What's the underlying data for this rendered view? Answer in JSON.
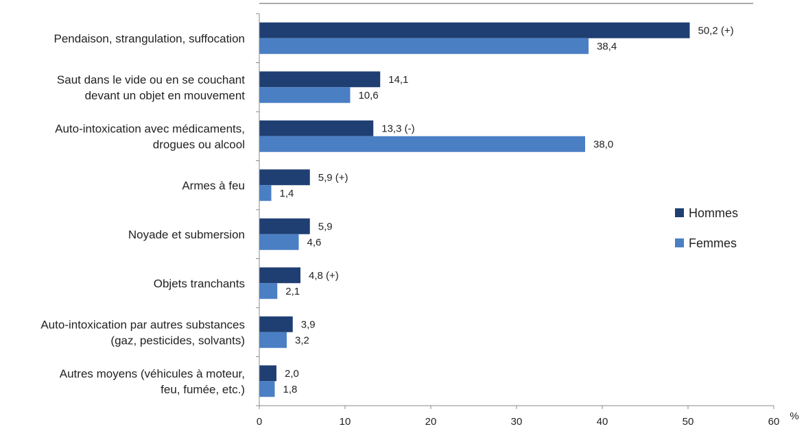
{
  "chart_data": {
    "type": "bar",
    "orientation": "horizontal",
    "categories": [
      [
        "Pendaison, strangulation, suffocation"
      ],
      [
        "Saut dans le vide ou en se couchant",
        "devant un objet en mouvement"
      ],
      [
        "Auto-intoxication avec médicaments,",
        "drogues ou alcool"
      ],
      [
        "Armes à feu"
      ],
      [
        "Noyade et submersion"
      ],
      [
        "Objets tranchants"
      ],
      [
        "Auto-intoxication par autres substances",
        "(gaz, pesticides, solvants)"
      ],
      [
        "Autres moyens (véhicules à moteur,",
        "feu, fumée, etc.)"
      ]
    ],
    "series": [
      {
        "name": "Hommes",
        "color": "#1f3f73",
        "values": [
          50.2,
          14.1,
          13.3,
          5.9,
          5.9,
          4.8,
          3.9,
          2.0
        ],
        "labels": [
          "50,2 (+)",
          "14,1",
          "13,3 (-)",
          "5,9 (+)",
          "5,9",
          "4,8 (+)",
          "3,9",
          "2,0"
        ]
      },
      {
        "name": "Femmes",
        "color": "#4a7fc4",
        "values": [
          38.4,
          10.6,
          38.0,
          1.4,
          4.6,
          2.1,
          3.2,
          1.8
        ],
        "labels": [
          "38,4",
          "10,6",
          "38,0",
          "1,4",
          "4,6",
          "2,1",
          "3,2",
          "1,8"
        ]
      }
    ],
    "xlim": [
      0,
      60
    ],
    "xticks": [
      0,
      10,
      20,
      30,
      40,
      50,
      60
    ],
    "x_unit": "%",
    "legend_position": "right",
    "grid": false
  }
}
